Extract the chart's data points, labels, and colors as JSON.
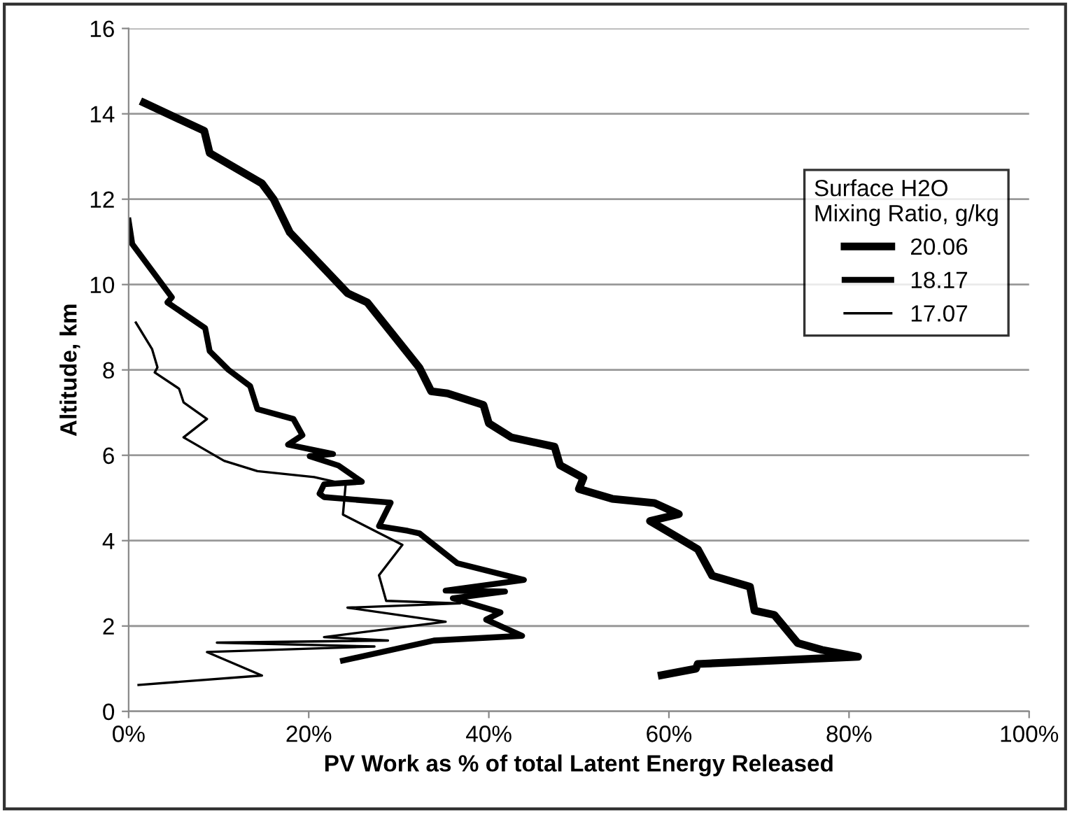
{
  "chart_data": {
    "type": "line",
    "xlabel": "PV Work as % of total Latent Energy Released",
    "ylabel": "Altitude, km",
    "legend_title": "Surface H2O\nMixing Ratio, g/kg",
    "xlim": [
      0,
      100
    ],
    "ylim": [
      0,
      16
    ],
    "xticks": [
      {
        "value": 0,
        "label": "0%"
      },
      {
        "value": 20,
        "label": "20%"
      },
      {
        "value": 40,
        "label": "40%"
      },
      {
        "value": 60,
        "label": "60%"
      },
      {
        "value": 80,
        "label": "80%"
      },
      {
        "value": 100,
        "label": "100%"
      }
    ],
    "yticks": [
      0,
      2,
      4,
      6,
      8,
      10,
      12,
      14,
      16
    ],
    "grid": "y",
    "legend": "upper right",
    "marker": "none",
    "line_style": "solid",
    "series": [
      {
        "name": "20.06",
        "color": "#000000",
        "x": [
          1.7,
          8.4,
          9.0,
          14.8,
          16.1,
          17.9,
          24.3,
          26.5,
          32.3,
          33.6,
          35.4,
          39.4,
          40.0,
          42.5,
          47.3,
          47.9,
          50.5,
          50.0,
          53.7,
          58.4,
          61.1,
          57.9,
          61.6,
          63.2,
          64.8,
          69.0,
          69.5,
          71.7,
          74.3,
          77,
          81,
          63.2,
          63,
          59.2
        ],
        "values": [
          14.26,
          13.6,
          13.08,
          12.37,
          12.0,
          11.22,
          9.8,
          9.58,
          8.05,
          7.5,
          7.45,
          7.18,
          6.75,
          6.42,
          6.2,
          5.77,
          5.47,
          5.21,
          4.98,
          4.88,
          4.62,
          4.46,
          4.0,
          3.8,
          3.18,
          2.92,
          2.36,
          2.26,
          1.6,
          1.44,
          1.28,
          1.11,
          1.0,
          0.85
        ]
      },
      {
        "name": "18.17",
        "color": "#000000",
        "x": [
          0,
          0.4,
          4.8,
          4.3,
          8.5,
          9.0,
          11.1,
          13.5,
          14.3,
          18.3,
          19.3,
          17.7,
          22.7,
          20.1,
          23.3,
          25.9,
          21.7,
          21.2,
          21.7,
          29.1,
          27.8,
          31.0,
          32.3,
          36.5,
          43.9,
          35.2,
          41.8,
          36.0,
          41.3,
          39.7,
          43.7,
          33.9,
          23.8
        ],
        "values": [
          11.5,
          10.95,
          9.7,
          9.58,
          8.98,
          8.44,
          8.0,
          7.62,
          7.08,
          6.85,
          6.47,
          6.25,
          6.03,
          5.98,
          5.76,
          5.38,
          5.32,
          5.1,
          5.02,
          4.89,
          4.34,
          4.23,
          4.17,
          3.47,
          3.08,
          2.83,
          2.81,
          2.65,
          2.32,
          2.15,
          1.77,
          1.66,
          1.19
        ]
      },
      {
        "name": "17.07",
        "color": "#000000",
        "x": [
          0.8,
          2.6,
          3.2,
          2.9,
          5.6,
          6.1,
          8.7,
          6.1,
          10.6,
          14.3,
          20.6,
          24.1,
          23.8,
          30.4,
          27.8,
          28.6,
          36.8,
          24.3,
          35.2,
          21.7,
          28.8,
          9.8,
          27.3,
          8.7,
          14.8,
          1.1
        ],
        "values": [
          9.11,
          8.49,
          8.06,
          7.94,
          7.56,
          7.24,
          6.85,
          6.42,
          5.87,
          5.63,
          5.49,
          5.32,
          4.61,
          3.9,
          3.19,
          2.59,
          2.53,
          2.43,
          2.1,
          1.74,
          1.66,
          1.61,
          1.52,
          1.39,
          0.84,
          0.62
        ]
      }
    ]
  }
}
